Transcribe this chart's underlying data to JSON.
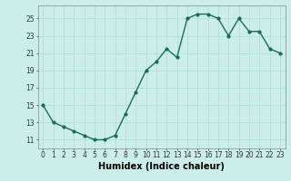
{
  "x": [
    0,
    1,
    2,
    3,
    4,
    5,
    6,
    7,
    8,
    9,
    10,
    11,
    12,
    13,
    14,
    15,
    16,
    17,
    18,
    19,
    20,
    21,
    22,
    23
  ],
  "y": [
    15,
    13,
    12.5,
    12,
    11.5,
    11,
    11,
    11.5,
    14,
    16.5,
    19,
    20,
    21.5,
    20.5,
    25,
    25.5,
    25.5,
    25,
    23,
    25,
    23.5,
    23.5,
    21.5,
    21
  ],
  "line_color": "#1a6b5a",
  "marker_color": "#1a6b5a",
  "bg_color": "#cceee8",
  "grid_color": "#aaddcc",
  "xlabel": "Humidex (Indice chaleur)",
  "xlim": [
    -0.5,
    23.5
  ],
  "ylim": [
    10.0,
    26.5
  ],
  "yticks": [
    11,
    13,
    15,
    17,
    19,
    21,
    23,
    25
  ],
  "xticks": [
    0,
    1,
    2,
    3,
    4,
    5,
    6,
    7,
    8,
    9,
    10,
    11,
    12,
    13,
    14,
    15,
    16,
    17,
    18,
    19,
    20,
    21,
    22,
    23
  ],
  "tick_fontsize": 5.5,
  "label_fontsize": 7.0,
  "linewidth": 1.0,
  "markersize": 2.0
}
